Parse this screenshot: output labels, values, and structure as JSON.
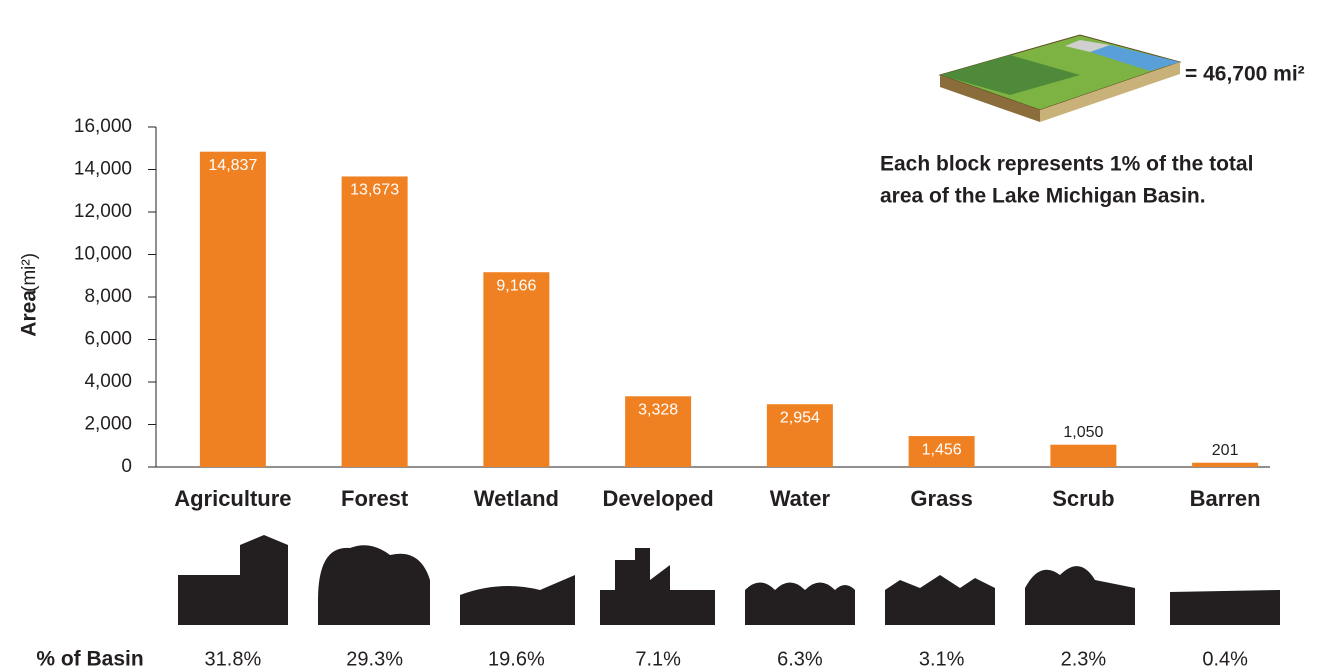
{
  "chart_data": {
    "type": "bar",
    "ylabel": "Area",
    "ylabel_unit": "(mi²)",
    "categories": [
      "Agriculture",
      "Forest",
      "Wetland",
      "Developed",
      "Water",
      "Grass",
      "Scrub",
      "Barren"
    ],
    "values": [
      14837,
      13673,
      9166,
      3328,
      2954,
      1456,
      1050,
      201
    ],
    "value_labels": [
      "14,837",
      "13,673",
      "9,166",
      "3,328",
      "2,954",
      "1,456",
      "1,050",
      "201"
    ],
    "color": "#f08122",
    "ylim": [
      0,
      16000
    ],
    "yticks": [
      0,
      {
        "value": 2000,
        "label": "2,000"
      },
      {
        "value": 4000,
        "label": "4,000"
      },
      {
        "value": 6000,
        "label": "6,000"
      },
      {
        "value": 8000,
        "label": "8,000"
      },
      {
        "value": 10000,
        "label": "10,000"
      },
      {
        "value": 12000,
        "label": "12,000"
      },
      {
        "value": 14000,
        "label": "14,000"
      },
      {
        "value": 16000,
        "label": "16,000"
      }
    ],
    "share_label": "% of Basin",
    "shares": [
      "31.8%",
      "29.3%",
      "19.6%",
      "7.1%",
      "6.3%",
      "3.1%",
      "2.3%",
      "0.4%"
    ],
    "key_total": "= 46,700 mi²",
    "key_note": [
      "Each block represents 1% of the total",
      "area of the Lake Michigan Basin."
    ]
  }
}
